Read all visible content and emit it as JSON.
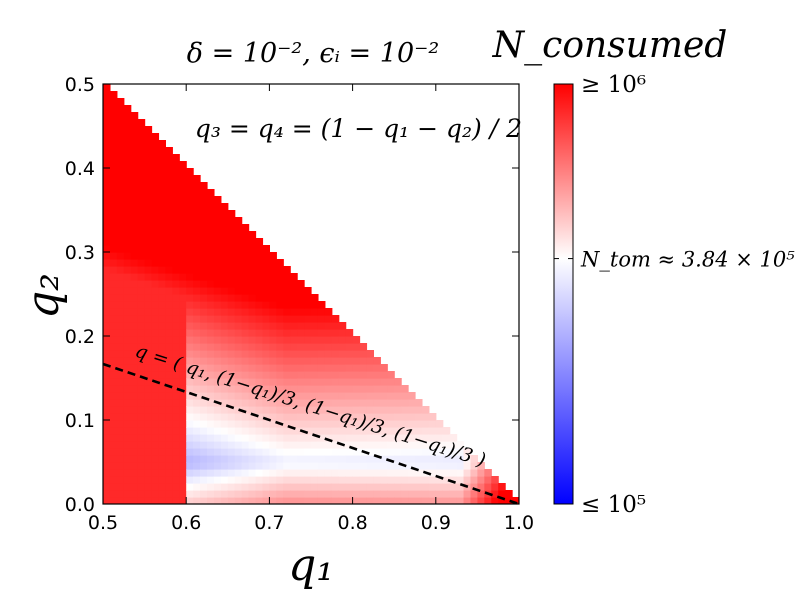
{
  "chart_data": {
    "type": "heatmap",
    "title": "δ = 10⁻²,   ϵᵢ = 10⁻²",
    "xlabel": "q₁",
    "ylabel": "q₂",
    "xlim": [
      0.5,
      1.0
    ],
    "ylim": [
      0.0,
      0.5
    ],
    "x_ticks": [
      "0.5",
      "0.6",
      "0.7",
      "0.8",
      "0.9",
      "1.0"
    ],
    "y_ticks": [
      "0.0",
      "0.1",
      "0.2",
      "0.3",
      "0.4",
      "0.5"
    ],
    "region": "q₁ + q₂ ≤ 1 (triangle); white above the diagonal",
    "constraint_annotation": "q₃ = q₄ = (1 − q₁ − q₂) / 2",
    "dashed_line": {
      "label": "q = ( q₁, (1−q₁)/3, (1−q₁)/3, (1−q₁)/3 )",
      "x": [
        0.5,
        1.0
      ],
      "y": [
        0.1667,
        0.0
      ],
      "style": "dashed",
      "color": "#000000"
    },
    "colorbar": {
      "title": "N_consumed",
      "colormap": "bwr",
      "min_color": "#0000ff",
      "mid_color": "#ffffff",
      "max_color": "#ff0000",
      "scale": "log",
      "range": [
        100000,
        1000000
      ],
      "top_label": "≥ 10⁶",
      "bottom_label": "≤ 10⁵",
      "mid_label": "N_tom ≈ 3.84 × 10⁵",
      "mid_value": 384000
    },
    "grid": false
  }
}
